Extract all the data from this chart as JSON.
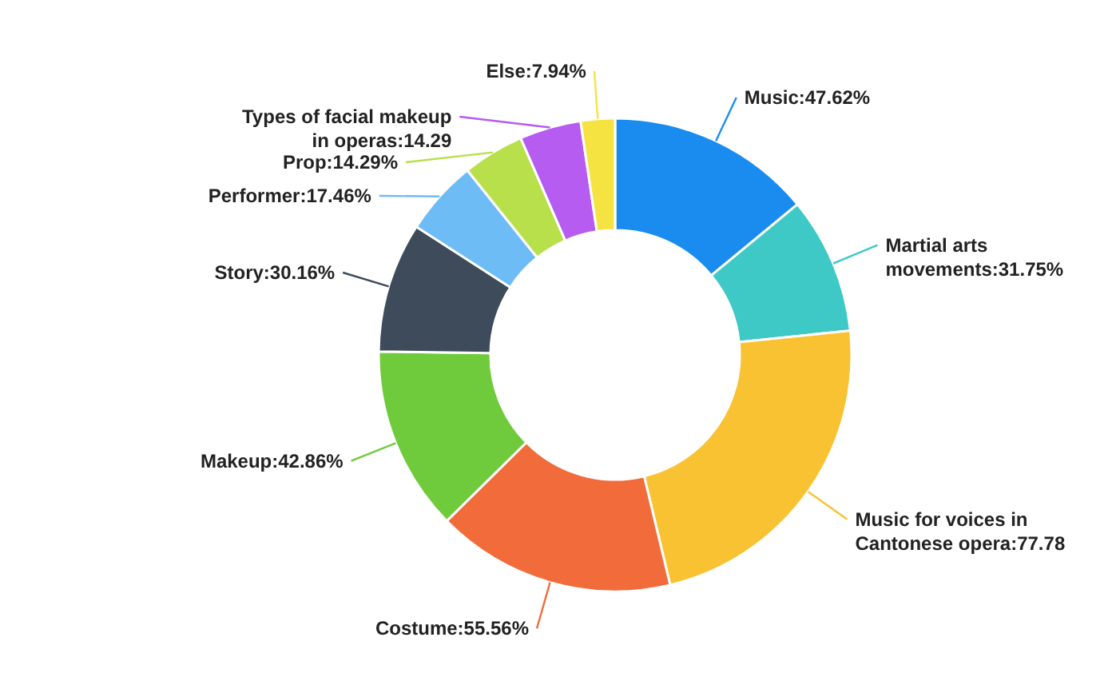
{
  "chart_data": {
    "type": "donut",
    "categories": [
      "Music",
      "Martial arts movements",
      "Music for voices in Cantonese opera",
      "Costume",
      "Makeup",
      "Story",
      "Performer",
      "Prop",
      "Types of facial makeup in operas",
      "Else"
    ],
    "values": [
      47.62,
      31.75,
      77.78,
      55.56,
      42.86,
      30.16,
      17.46,
      14.29,
      14.29,
      7.94
    ],
    "value_labels": [
      "47.62%",
      "31.75%",
      "77.78",
      "55.56%",
      "42.86%",
      "30.16%",
      "17.46%",
      "14.29%",
      "14.29",
      "7.94%"
    ],
    "colors": [
      "#1a8cf0",
      "#3ec9c6",
      "#f9c233",
      "#f26b3a",
      "#6fcb3c",
      "#3d4b5a",
      "#6dbcf5",
      "#b7e04a",
      "#b65cf0",
      "#f5e342"
    ]
  }
}
